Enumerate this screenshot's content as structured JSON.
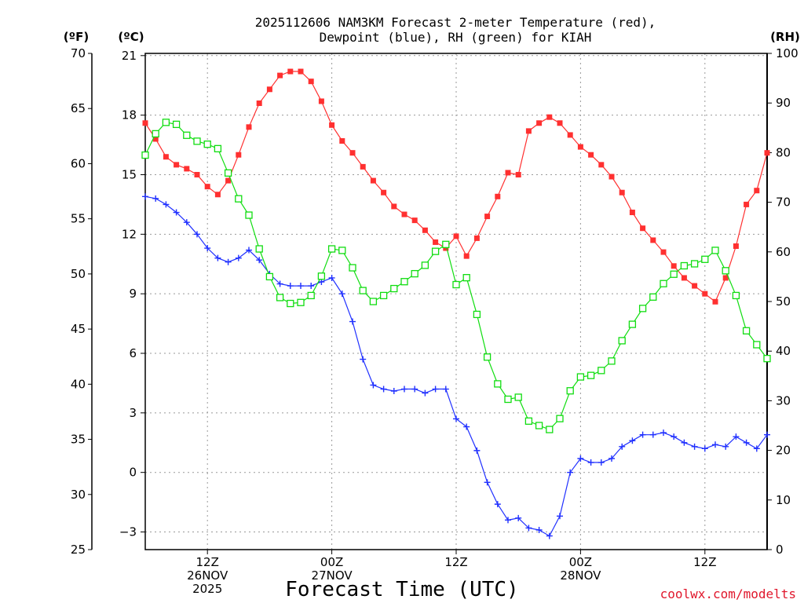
{
  "chart_data": {
    "type": "line",
    "title_line1": "2025112606 NAM3KM Forecast 2-meter Temperature (red),",
    "title_line2": "Dewpoint (blue), RH (green) for KIAH",
    "xlabel": "Forecast Time (UTC)",
    "credit": "coolwx.com/modelts",
    "unit_f": "(ºF)",
    "unit_c": "(ºC)",
    "unit_rh": "(RH)",
    "x_start_hour": 6,
    "x_step_hours": 1,
    "x_range_hours": [
      6,
      66
    ],
    "x_ticks": [
      {
        "hour": 12,
        "lines": [
          "12Z",
          "26NOV",
          "2025"
        ]
      },
      {
        "hour": 24,
        "lines": [
          "00Z",
          "27NOV"
        ]
      },
      {
        "hour": 36,
        "lines": [
          "12Z"
        ]
      },
      {
        "hour": 48,
        "lines": [
          "00Z",
          "28NOV"
        ]
      },
      {
        "hour": 60,
        "lines": [
          "12Z"
        ]
      }
    ],
    "y_left_f": {
      "range": [
        25,
        70
      ],
      "ticks": [
        "25",
        "30",
        "35",
        "40",
        "45",
        "50",
        "55",
        "60",
        "65",
        "70"
      ]
    },
    "y_left_c": {
      "range": [
        -3.888889,
        21.111111
      ],
      "ticks": [
        "−3",
        "0",
        "3",
        "6",
        "9",
        "12",
        "15",
        "18",
        "21"
      ]
    },
    "y_right_rh": {
      "range": [
        0,
        100
      ],
      "ticks": [
        "0",
        "10",
        "20",
        "30",
        "40",
        "50",
        "60",
        "70",
        "80",
        "90",
        "100"
      ]
    },
    "series": [
      {
        "name": "2-meter Temperature",
        "units": "°C",
        "color": "#ff3030",
        "marker": "filled-square",
        "values": [
          17.6,
          16.8,
          15.9,
          15.5,
          15.3,
          15.0,
          14.4,
          14.0,
          14.7,
          16.0,
          17.4,
          18.6,
          19.3,
          20.0,
          20.2,
          20.2,
          19.7,
          18.7,
          17.5,
          16.7,
          16.1,
          15.4,
          14.7,
          14.1,
          13.4,
          13.0,
          12.7,
          12.2,
          11.6,
          11.3,
          11.9,
          10.9,
          11.8,
          12.9,
          13.9,
          15.1,
          15.0,
          17.2,
          17.6,
          17.9,
          17.6,
          17.0,
          16.4,
          16.0,
          15.5,
          14.9,
          14.1,
          13.1,
          12.3,
          11.7,
          11.1,
          10.4,
          9.8,
          9.4,
          9.0,
          8.6,
          9.8,
          11.4,
          13.5,
          14.2,
          16.1
        ]
      },
      {
        "name": "Dewpoint",
        "units": "°C",
        "color": "#2030ff",
        "marker": "plus",
        "values": [
          13.9,
          13.8,
          13.5,
          13.1,
          12.6,
          12.0,
          11.3,
          10.8,
          10.6,
          10.8,
          11.2,
          10.7,
          10.0,
          9.5,
          9.4,
          9.4,
          9.4,
          9.6,
          9.8,
          9.0,
          7.6,
          5.7,
          4.4,
          4.2,
          4.1,
          4.2,
          4.2,
          4.0,
          4.2,
          4.2,
          2.7,
          2.3,
          1.1,
          -0.5,
          -1.6,
          -2.4,
          -2.3,
          -2.8,
          -2.9,
          -3.2,
          -2.2,
          0.0,
          0.7,
          0.5,
          0.5,
          0.7,
          1.3,
          1.6,
          1.9,
          1.9,
          2.0,
          1.8,
          1.5,
          1.3,
          1.2,
          1.4,
          1.3,
          1.8,
          1.5,
          1.2,
          1.9
        ]
      },
      {
        "name": "Relative Humidity",
        "units": "%",
        "color": "#10dd10",
        "marker": "open-square",
        "values": [
          79.5,
          83.8,
          86.1,
          85.7,
          83.5,
          82.3,
          81.7,
          80.8,
          75.9,
          70.7,
          67.4,
          60.6,
          55.0,
          50.8,
          49.6,
          49.8,
          51.2,
          55.1,
          60.6,
          60.3,
          56.8,
          52.2,
          50.0,
          51.2,
          52.6,
          54.0,
          55.6,
          57.3,
          60.1,
          61.5,
          53.4,
          54.8,
          47.4,
          38.8,
          33.4,
          30.3,
          30.7,
          25.9,
          25.0,
          24.2,
          26.4,
          32.0,
          34.8,
          35.1,
          36.1,
          38.0,
          42.1,
          45.4,
          48.6,
          50.9,
          53.6,
          55.5,
          57.2,
          57.6,
          58.5,
          60.3,
          56.2,
          51.2,
          44.1,
          41.3,
          38.5
        ]
      }
    ]
  }
}
